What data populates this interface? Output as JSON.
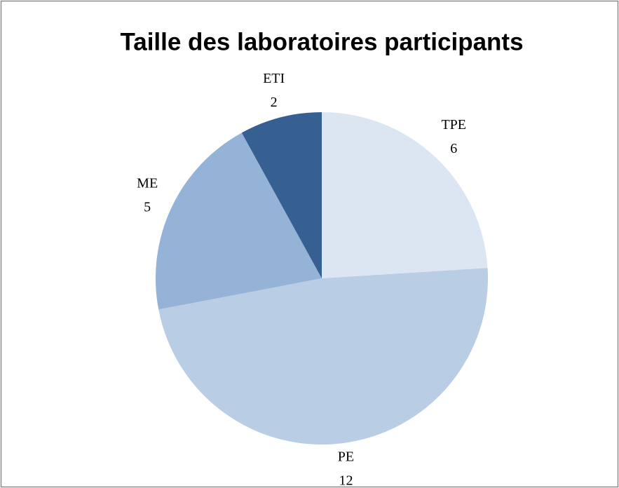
{
  "chart_data": {
    "type": "pie",
    "title": "Taille des laboratoires participants",
    "categories": [
      "TPE",
      "PE",
      "ME",
      "ETI"
    ],
    "values": [
      6,
      12,
      5,
      2
    ],
    "colors": [
      "#dce6f2",
      "#b9cde5",
      "#95b3d7",
      "#376092"
    ]
  }
}
